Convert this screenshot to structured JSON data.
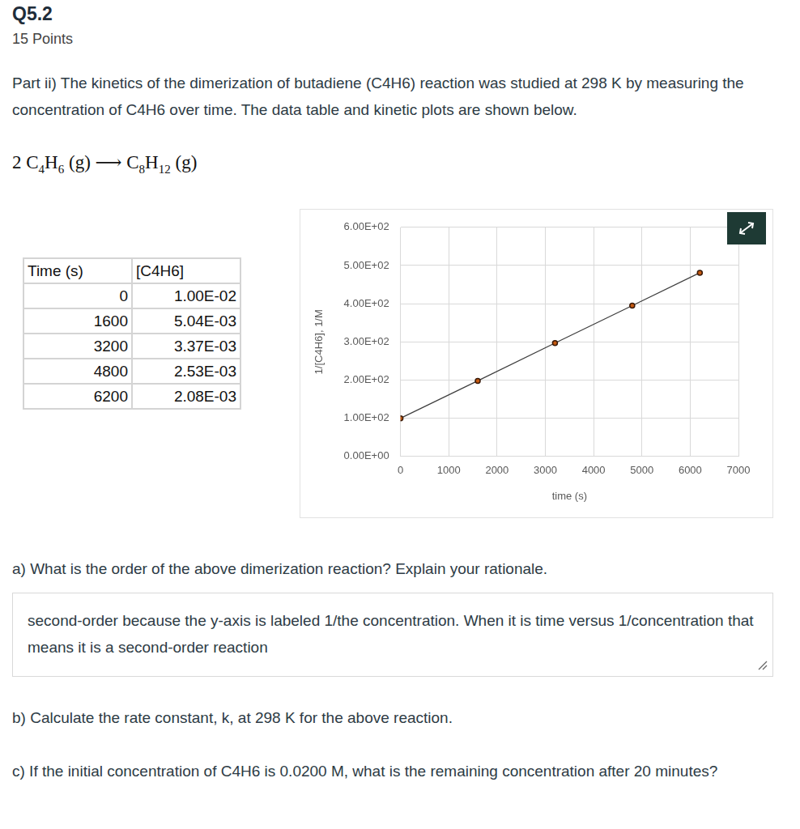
{
  "header": {
    "title": "Q5.2",
    "points": "15 Points"
  },
  "intro": "Part ii) The kinetics of the dimerization of butadiene (C4H6) reaction was studied at 298 K by measuring the concentration of C4H6 over time. The data table and kinetic plots are shown below.",
  "equation": [
    {
      "text": "2 C"
    },
    {
      "sub": "4"
    },
    {
      "text": "H"
    },
    {
      "sub": "6"
    },
    {
      "text": " (g) ⟶ C"
    },
    {
      "sub": "8"
    },
    {
      "text": "H"
    },
    {
      "sub": "12"
    },
    {
      "text": " (g)"
    }
  ],
  "table": {
    "header": [
      "Time (s)",
      "[C4H6]"
    ],
    "rows": [
      [
        "0",
        "1.00E-02"
      ],
      [
        "1600",
        "5.04E-03"
      ],
      [
        "3200",
        "3.37E-03"
      ],
      [
        "4800",
        "2.53E-03"
      ],
      [
        "6200",
        "2.08E-03"
      ]
    ]
  },
  "chart_data": {
    "type": "line",
    "x_label": "time (s)",
    "y_label": "1/[C4H6], 1/M",
    "x": [
      0,
      1600,
      3200,
      4800,
      6200
    ],
    "values": [
      100,
      198,
      297,
      395,
      481
    ],
    "color": "#404040",
    "marker": "circle",
    "line_style": "solid",
    "xlim": [
      0,
      7000
    ],
    "xticks": [
      0,
      1000,
      2000,
      3000,
      4000,
      5000,
      6000,
      7000
    ],
    "ylim": [
      0,
      600
    ],
    "yticks": [
      {
        "value": 0,
        "label": "0.00E+00"
      },
      {
        "value": 100,
        "label": "1.00E+02"
      },
      {
        "value": 200,
        "label": "2.00E+02"
      },
      {
        "value": 300,
        "label": "3.00E+02"
      },
      {
        "value": 400,
        "label": "4.00E+02"
      },
      {
        "value": 500,
        "label": "5.00E+02"
      },
      {
        "value": 600,
        "label": "6.00E+02"
      }
    ],
    "grid": true
  },
  "questions": [
    {
      "label": "a) What is the order of the above dimerization reaction? Explain your rationale.",
      "answer": "second-order because the y-axis is labeled 1/the concentration. When it is time versus 1/concentration that means it is a second-order reaction"
    },
    {
      "label": "b) Calculate the rate constant, k, at 298 K for the above reaction."
    },
    {
      "label": "c) If the initial concentration of C4H6 is 0.0200 M, what is the remaining concentration after 20 minutes?"
    }
  ]
}
